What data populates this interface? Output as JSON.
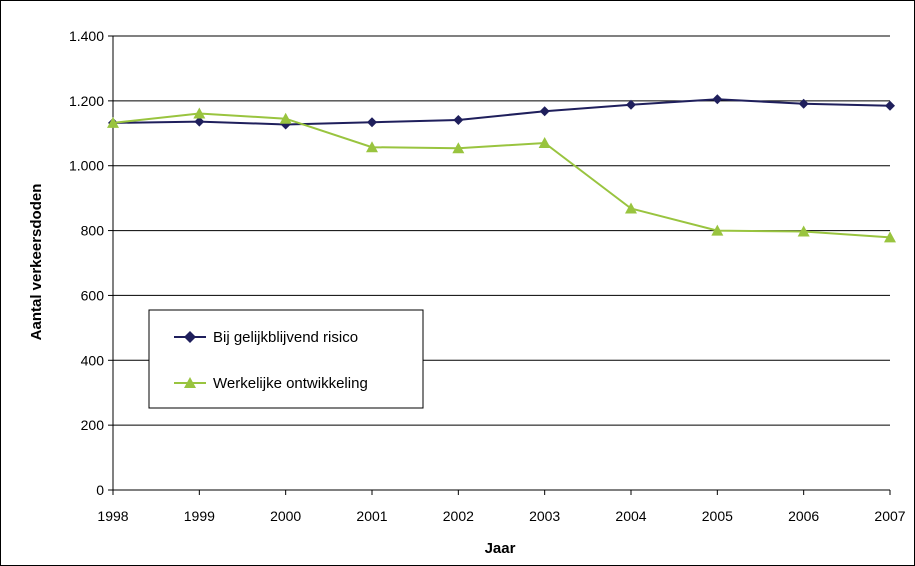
{
  "chart_data": {
    "type": "line",
    "x": [
      1998,
      1999,
      2000,
      2001,
      2002,
      2003,
      2004,
      2005,
      2006,
      2007
    ],
    "x_tick_labels": [
      "1998",
      "1999",
      "2000",
      "2001",
      "2002",
      "2003",
      "2004",
      "2005",
      "2006",
      "2007"
    ],
    "y_tick_labels": [
      "0",
      "200",
      "400",
      "600",
      "800",
      "1.000",
      "1.200",
      "1.400"
    ],
    "y_ticks": [
      0,
      200,
      400,
      600,
      800,
      1000,
      1200,
      1400
    ],
    "ylim": [
      0,
      1400
    ],
    "xlabel": "Jaar",
    "ylabel": "Aantal verkeersdoden",
    "grid": "horizontal",
    "legend_position": "left-middle",
    "series": [
      {
        "name": "Bij gelijkblijvend risico",
        "color": "#1f1f5c",
        "marker": "diamond",
        "values": [
          1132,
          1136,
          1127,
          1134,
          1141,
          1168,
          1188,
          1205,
          1191,
          1185
        ]
      },
      {
        "name": "Werkelijke ontwikkeling",
        "color": "#99c43f",
        "marker": "triangle",
        "values": [
          1132,
          1161,
          1145,
          1057,
          1054,
          1070,
          868,
          800,
          797,
          779
        ]
      }
    ]
  }
}
